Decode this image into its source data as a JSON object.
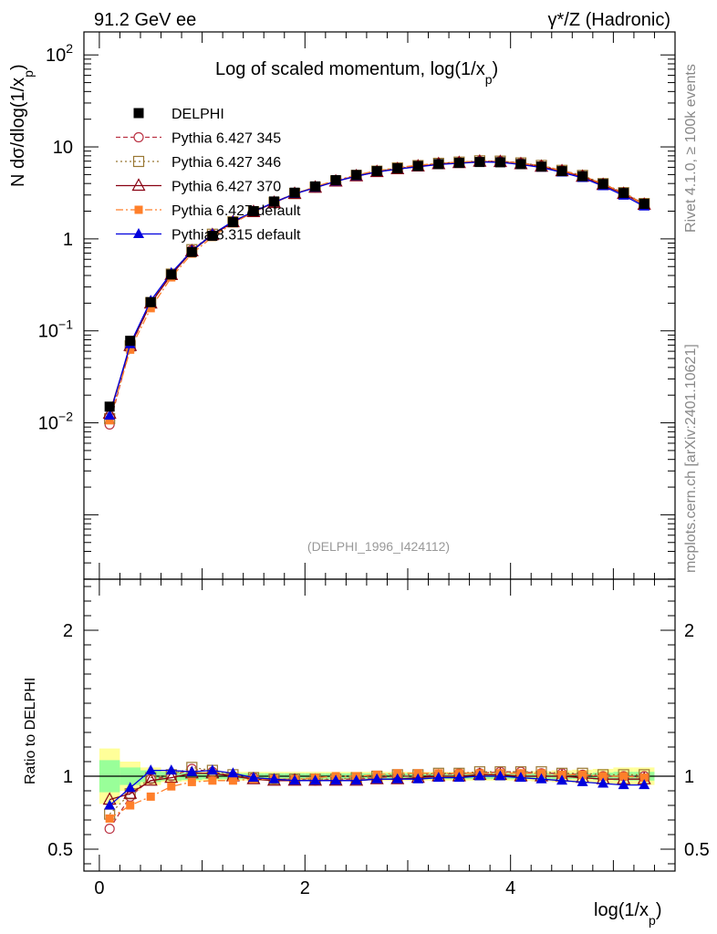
{
  "header": {
    "energy_label": "91.2 GeV ee",
    "process_label": "γ*/Z (Hadronic)"
  },
  "side_labels": {
    "rivet": "Rivet 4.1.0, ≥ 100k events",
    "source": "mcplots.cern.ch [arXiv:2401.10621]"
  },
  "chart_data": {
    "type": "line",
    "title": "Log of scaled momentum, log(1/x_p)",
    "title_text": "Log of scaled momentum, log(1/x",
    "title_sub": "p",
    "title_close": ")",
    "watermark": "(DELPHI_1996_I424112)",
    "ylabel_main_prefix": "N  dσ/dlog(1/x",
    "ylabel_main_sub": "p",
    "ylabel_main_suffix": ")",
    "ylabel_ratio": "Ratio to DELPHI",
    "xlabel_main": "log(1/x",
    "xlabel_sub": "p",
    "xlabel_close": ")",
    "xlim": [
      -0.15,
      5.6
    ],
    "ylim_main_log10": [
      -3.7,
      2.25
    ],
    "ylim_ratio": [
      0.35,
      2.35
    ],
    "x_ticks": [
      0,
      2,
      4
    ],
    "x_tick_labels": [
      "0",
      "2",
      "4"
    ],
    "y_ticks_main_exp": [
      -2,
      -1,
      0,
      1,
      2
    ],
    "y_tick_labels_main": [
      {
        "base": "10",
        "exp": "−2"
      },
      {
        "base": "10",
        "exp": "−1"
      },
      {
        "base": "1",
        "exp": ""
      },
      {
        "base": "10",
        "exp": ""
      },
      {
        "base": "10",
        "exp": "2"
      }
    ],
    "y_ticks_ratio": [
      0.5,
      1,
      2
    ],
    "y_tick_labels_ratio": [
      "0.5",
      "1",
      "2"
    ],
    "x": [
      0.1,
      0.3,
      0.5,
      0.7,
      0.9,
      1.1,
      1.3,
      1.5,
      1.7,
      1.9,
      2.1,
      2.3,
      2.5,
      2.7,
      2.9,
      3.1,
      3.3,
      3.5,
      3.7,
      3.9,
      4.1,
      4.3,
      4.5,
      4.7,
      4.9,
      5.1,
      5.3
    ],
    "band_edges": [
      0.0,
      0.2,
      0.4,
      0.6,
      0.8,
      1.0,
      1.2,
      1.4,
      1.6,
      1.8,
      2.0,
      2.2,
      2.4,
      2.6,
      2.8,
      3.0,
      3.2,
      3.4,
      3.6,
      3.8,
      4.0,
      4.2,
      4.4,
      4.6,
      4.8,
      5.0,
      5.2,
      5.4
    ],
    "band_inner": [
      0.11,
      0.06,
      0.04,
      0.03,
      0.025,
      0.02,
      0.02,
      0.02,
      0.02,
      0.02,
      0.02,
      0.02,
      0.02,
      0.02,
      0.02,
      0.02,
      0.02,
      0.02,
      0.02,
      0.02,
      0.02,
      0.02,
      0.02,
      0.02,
      0.025,
      0.03,
      0.03
    ],
    "band_outer": [
      0.19,
      0.1,
      0.06,
      0.04,
      0.035,
      0.03,
      0.03,
      0.03,
      0.03,
      0.03,
      0.03,
      0.03,
      0.03,
      0.03,
      0.03,
      0.03,
      0.03,
      0.03,
      0.03,
      0.03,
      0.03,
      0.035,
      0.04,
      0.045,
      0.05,
      0.06,
      0.06
    ],
    "data": {
      "name": "DELPHI",
      "values": [
        0.015,
        0.078,
        0.205,
        0.41,
        0.72,
        1.08,
        1.52,
        2.0,
        2.55,
        3.18,
        3.72,
        4.35,
        4.95,
        5.45,
        5.85,
        6.2,
        6.5,
        6.7,
        6.85,
        6.8,
        6.5,
        6.1,
        5.45,
        4.8,
        3.95,
        3.15,
        2.4
      ],
      "color": "#000000"
    },
    "series": [
      {
        "name": "Pythia 6.427 345",
        "color": "#bb3344",
        "dash": "5,3",
        "marker": "circle-open",
        "ratio": [
          0.64,
          0.86,
          0.98,
          1.0,
          1.05,
          1.03,
          1.0,
          0.99,
          0.98,
          0.98,
          0.97,
          0.98,
          0.98,
          0.99,
          1.0,
          1.0,
          1.01,
          1.02,
          1.02,
          1.03,
          1.03,
          1.02,
          1.02,
          1.01,
          1.0,
          1.0,
          1.0
        ]
      },
      {
        "name": "Pythia 6.427 346",
        "color": "#997733",
        "dash": "2,3",
        "marker": "square-open",
        "ratio": [
          0.74,
          0.88,
          0.99,
          1.01,
          1.06,
          1.04,
          1.01,
          0.99,
          0.98,
          0.98,
          0.98,
          0.98,
          0.99,
          1.0,
          1.01,
          1.01,
          1.02,
          1.02,
          1.03,
          1.03,
          1.03,
          1.03,
          1.02,
          1.02,
          1.01,
          1.01,
          1.01
        ]
      },
      {
        "name": "Pythia 6.427 370",
        "color": "#880011",
        "dash": "",
        "marker": "triangle-open",
        "ratio": [
          0.84,
          0.88,
          0.97,
          0.99,
          1.02,
          1.02,
          1.0,
          0.98,
          0.97,
          0.97,
          0.97,
          0.97,
          0.97,
          0.98,
          0.98,
          0.99,
          1.0,
          1.0,
          1.01,
          1.01,
          1.0,
          1.0,
          1.0,
          0.99,
          0.98,
          0.98,
          0.98
        ]
      },
      {
        "name": "Pythia 6.427 default",
        "color": "#ff7f2a",
        "dash": "8,3,2,3",
        "marker": "square-filled",
        "ratio": [
          0.71,
          0.8,
          0.86,
          0.93,
          0.96,
          0.97,
          0.97,
          0.98,
          0.98,
          0.98,
          0.99,
          1.0,
          1.0,
          1.01,
          1.02,
          1.02,
          1.02,
          1.02,
          1.02,
          1.02,
          1.02,
          1.02,
          1.01,
          1.01,
          1.0,
          1.0,
          0.99
        ]
      },
      {
        "name": "Pythia 8.315 default",
        "color": "#0000dd",
        "dash": "",
        "marker": "triangle-filled",
        "ratio": [
          0.8,
          0.92,
          1.04,
          1.04,
          1.03,
          1.04,
          1.02,
          0.99,
          0.98,
          0.97,
          0.97,
          0.97,
          0.97,
          0.98,
          0.98,
          0.98,
          0.99,
          0.99,
          1.0,
          1.0,
          0.99,
          0.98,
          0.97,
          0.96,
          0.95,
          0.94,
          0.94
        ]
      }
    ],
    "legend_position": "top-left"
  }
}
